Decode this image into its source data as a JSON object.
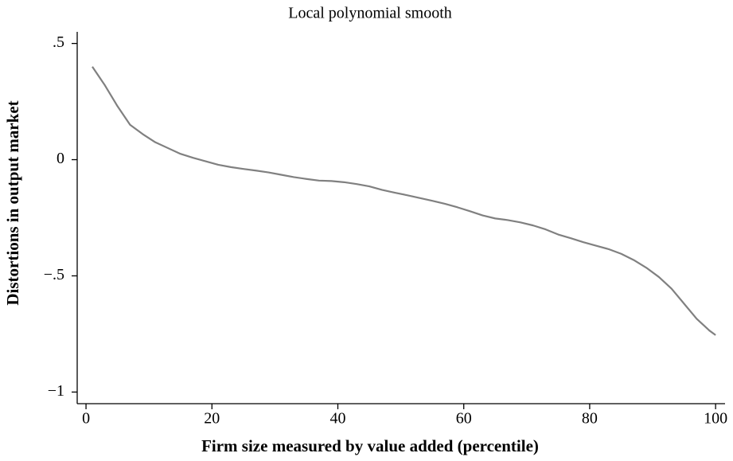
{
  "chart_data": {
    "type": "line",
    "title": "Local polynomial smooth",
    "x_label": "Firm size measured by value added (percentile)",
    "y_label": "Distortions in output market",
    "x": [
      1,
      3,
      5,
      7,
      9,
      11,
      13,
      15,
      17,
      19,
      21,
      23,
      25,
      27,
      29,
      31,
      33,
      35,
      37,
      39,
      41,
      43,
      45,
      47,
      49,
      51,
      53,
      55,
      57,
      59,
      61,
      63,
      65,
      67,
      69,
      71,
      73,
      75,
      77,
      79,
      81,
      83,
      85,
      87,
      89,
      91,
      93,
      95,
      97,
      99,
      100
    ],
    "series": [
      {
        "name": "Local polynomial smooth",
        "color": "#808080",
        "values": [
          0.4,
          0.32,
          0.23,
          0.15,
          0.11,
          0.075,
          0.05,
          0.025,
          0.008,
          -0.007,
          -0.022,
          -0.032,
          -0.04,
          -0.047,
          -0.055,
          -0.065,
          -0.075,
          -0.083,
          -0.09,
          -0.092,
          -0.097,
          -0.105,
          -0.115,
          -0.13,
          -0.142,
          -0.153,
          -0.165,
          -0.177,
          -0.19,
          -0.205,
          -0.222,
          -0.24,
          -0.253,
          -0.26,
          -0.27,
          -0.283,
          -0.3,
          -0.322,
          -0.338,
          -0.355,
          -0.37,
          -0.385,
          -0.405,
          -0.432,
          -0.465,
          -0.505,
          -0.555,
          -0.62,
          -0.685,
          -0.735,
          -0.755
        ]
      }
    ],
    "xlim": [
      -1.4,
      101.5
    ],
    "ylim": [
      -1.05,
      0.55
    ],
    "xticks": [
      0,
      20,
      40,
      60,
      80,
      100
    ],
    "yticks": [
      {
        "value": 0.5,
        "label": ".5"
      },
      0,
      {
        "value": -0.5,
        "label": "−.5"
      },
      {
        "value": -1,
        "label": "−1"
      }
    ]
  }
}
